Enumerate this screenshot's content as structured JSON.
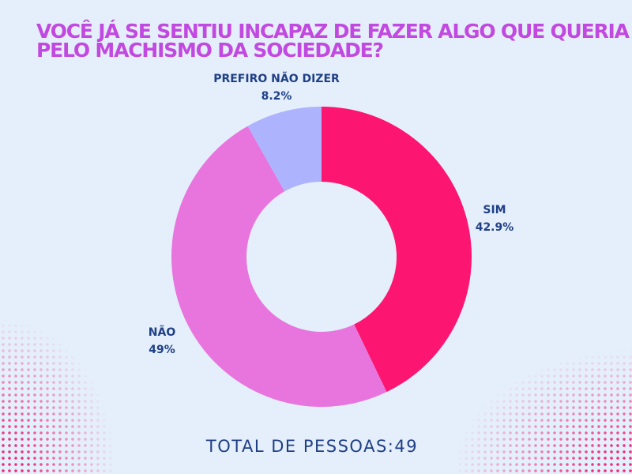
{
  "title_lines": [
    "VOCÊ JÁ SE SENTIU INCAPAZ DE FAZER ALGO QUE QUERIA",
    "PELO MACHISMO DA SOCIEDADE?"
  ],
  "total_label": "TOTAL DE PESSOAS:49",
  "chart_data": {
    "type": "pie",
    "subtype": "donut",
    "title": "VOCÊ JÁ SE SENTIU INCAPAZ DE FAZER ALGO QUE QUERIA PELO MACHISMO DA SOCIEDADE?",
    "categories": [
      "SIM",
      "NÃO",
      "PREFIRO NÃO DIZER"
    ],
    "values": [
      42.9,
      49,
      8.2
    ],
    "value_labels": [
      "42.9%",
      "49%",
      "8.2%"
    ],
    "colors": [
      "#fc1571",
      "#e875de",
      "#adb3fd"
    ],
    "unit": "%"
  }
}
